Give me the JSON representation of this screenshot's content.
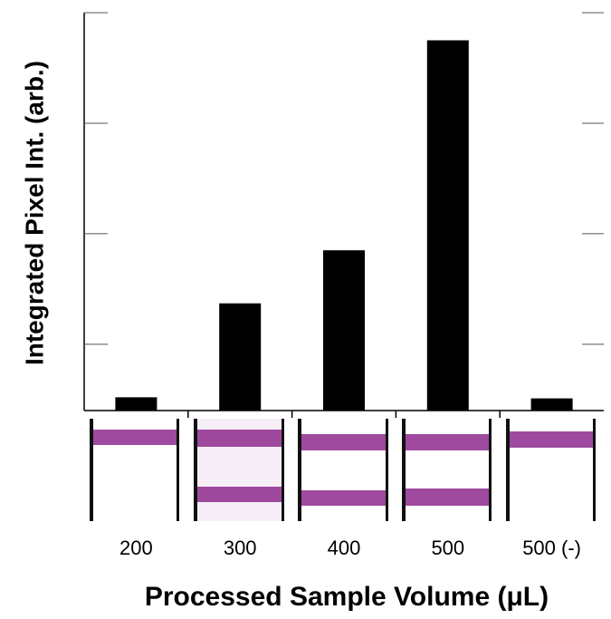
{
  "chart_data": {
    "type": "bar",
    "x_label": "Processed Sample Volume (μL)",
    "y_label": "Integrated Pixel Int. (arb.)",
    "categories": [
      "200",
      "300",
      "400",
      "500",
      "500 (-)"
    ],
    "values": [
      0.12,
      0.97,
      1.45,
      3.35,
      0.11
    ],
    "color": "#000000",
    "ylim": [
      0,
      3.6
    ],
    "yticks": [
      0.6,
      1.6,
      2.6,
      3.6
    ]
  }
}
